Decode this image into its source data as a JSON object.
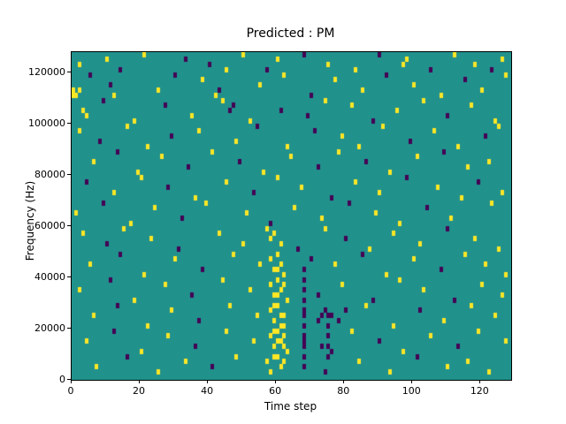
{
  "chart_data": {
    "type": "heatmap",
    "title": "Predicted : PM",
    "xlabel": "Time step",
    "ylabel": "Frequency (Hz)",
    "xlim": [
      0,
      129
    ],
    "ylim": [
      0,
      128000
    ],
    "x_ticks": [
      0,
      20,
      40,
      60,
      80,
      100,
      120
    ],
    "y_ticks": [
      0,
      20000,
      40000,
      60000,
      80000,
      100000,
      120000
    ],
    "bin_width_steps": 1,
    "bin_height_hz": 2000,
    "colors": {
      "background": "#21918c",
      "high": "#fde725",
      "low": "#440154",
      "axis": "#000000",
      "page": "#ffffff"
    },
    "legend": "none",
    "grid": false,
    "cells_note": "each cell = [time_step, frequency_hz_lower_edge, value] value 1=yellow(high) 0=purple(low)",
    "cells": [
      [
        2,
        122000,
        1
      ],
      [
        10,
        124000,
        1
      ],
      [
        14,
        120000,
        0
      ],
      [
        21,
        126000,
        1
      ],
      [
        33,
        124000,
        0
      ],
      [
        40,
        122000,
        0
      ],
      [
        45,
        120000,
        1
      ],
      [
        50,
        126000,
        1
      ],
      [
        57,
        120000,
        0
      ],
      [
        60,
        124000,
        1
      ],
      [
        68,
        126000,
        0
      ],
      [
        75,
        122000,
        1
      ],
      [
        83,
        120000,
        1
      ],
      [
        90,
        126000,
        0
      ],
      [
        97,
        122000,
        1
      ],
      [
        98,
        124000,
        1
      ],
      [
        105,
        120000,
        0
      ],
      [
        112,
        126000,
        1
      ],
      [
        118,
        122000,
        1
      ],
      [
        123,
        120000,
        0
      ],
      [
        126,
        124000,
        1
      ],
      [
        1,
        110000,
        1
      ],
      [
        2,
        112000,
        1
      ],
      [
        5,
        118000,
        0
      ],
      [
        11,
        114000,
        0
      ],
      [
        12,
        110000,
        1
      ],
      [
        25,
        112000,
        1
      ],
      [
        30,
        118000,
        0
      ],
      [
        38,
        116000,
        1
      ],
      [
        42,
        110000,
        1
      ],
      [
        43,
        112000,
        0
      ],
      [
        55,
        114000,
        1
      ],
      [
        62,
        118000,
        1
      ],
      [
        70,
        110000,
        0
      ],
      [
        77,
        116000,
        1
      ],
      [
        85,
        112000,
        1
      ],
      [
        92,
        118000,
        0
      ],
      [
        100,
        114000,
        1
      ],
      [
        108,
        110000,
        1
      ],
      [
        115,
        116000,
        0
      ],
      [
        120,
        112000,
        1
      ],
      [
        127,
        118000,
        1
      ],
      [
        0,
        110000,
        1
      ],
      [
        0,
        112000,
        1
      ],
      [
        3,
        104000,
        1
      ],
      [
        4,
        102000,
        1
      ],
      [
        9,
        108000,
        0
      ],
      [
        18,
        100000,
        1
      ],
      [
        27,
        106000,
        0
      ],
      [
        35,
        102000,
        1
      ],
      [
        44,
        108000,
        1
      ],
      [
        46,
        104000,
        0
      ],
      [
        47,
        106000,
        0
      ],
      [
        52,
        100000,
        1
      ],
      [
        61,
        104000,
        0
      ],
      [
        69,
        102000,
        0
      ],
      [
        74,
        108000,
        1
      ],
      [
        82,
        106000,
        1
      ],
      [
        88,
        100000,
        0
      ],
      [
        95,
        104000,
        1
      ],
      [
        103,
        108000,
        1
      ],
      [
        110,
        102000,
        0
      ],
      [
        117,
        106000,
        1
      ],
      [
        124,
        100000,
        1
      ],
      [
        2,
        96000,
        1
      ],
      [
        8,
        92000,
        0
      ],
      [
        16,
        98000,
        1
      ],
      [
        22,
        90000,
        1
      ],
      [
        29,
        94000,
        0
      ],
      [
        37,
        96000,
        1
      ],
      [
        48,
        92000,
        1
      ],
      [
        54,
        98000,
        0
      ],
      [
        63,
        90000,
        1
      ],
      [
        71,
        96000,
        0
      ],
      [
        79,
        94000,
        1
      ],
      [
        84,
        90000,
        1
      ],
      [
        91,
        98000,
        1
      ],
      [
        99,
        92000,
        0
      ],
      [
        106,
        96000,
        1
      ],
      [
        113,
        90000,
        1
      ],
      [
        121,
        94000,
        0
      ],
      [
        125,
        98000,
        1
      ],
      [
        6,
        84000,
        1
      ],
      [
        13,
        88000,
        0
      ],
      [
        19,
        80000,
        1
      ],
      [
        26,
        86000,
        1
      ],
      [
        34,
        82000,
        0
      ],
      [
        41,
        88000,
        1
      ],
      [
        49,
        84000,
        0
      ],
      [
        56,
        80000,
        1
      ],
      [
        64,
        86000,
        1
      ],
      [
        72,
        82000,
        0
      ],
      [
        78,
        88000,
        1
      ],
      [
        86,
        84000,
        0
      ],
      [
        93,
        80000,
        1
      ],
      [
        101,
        86000,
        1
      ],
      [
        109,
        88000,
        0
      ],
      [
        116,
        82000,
        1
      ],
      [
        122,
        84000,
        1
      ],
      [
        4,
        76000,
        0
      ],
      [
        12,
        72000,
        1
      ],
      [
        20,
        78000,
        1
      ],
      [
        28,
        74000,
        0
      ],
      [
        36,
        70000,
        1
      ],
      [
        45,
        76000,
        1
      ],
      [
        53,
        72000,
        0
      ],
      [
        60,
        78000,
        1
      ],
      [
        67,
        74000,
        1
      ],
      [
        76,
        70000,
        0
      ],
      [
        83,
        76000,
        1
      ],
      [
        90,
        72000,
        1
      ],
      [
        98,
        78000,
        0
      ],
      [
        107,
        74000,
        1
      ],
      [
        114,
        70000,
        1
      ],
      [
        119,
        76000,
        0
      ],
      [
        126,
        72000,
        1
      ],
      [
        1,
        64000,
        1
      ],
      [
        9,
        68000,
        0
      ],
      [
        17,
        60000,
        1
      ],
      [
        24,
        66000,
        1
      ],
      [
        32,
        62000,
        0
      ],
      [
        39,
        68000,
        1
      ],
      [
        51,
        64000,
        1
      ],
      [
        58,
        60000,
        0
      ],
      [
        65,
        66000,
        1
      ],
      [
        73,
        62000,
        1
      ],
      [
        81,
        68000,
        0
      ],
      [
        89,
        64000,
        1
      ],
      [
        96,
        60000,
        1
      ],
      [
        104,
        66000,
        0
      ],
      [
        111,
        62000,
        1
      ],
      [
        123,
        68000,
        1
      ],
      [
        3,
        56000,
        1
      ],
      [
        10,
        52000,
        0
      ],
      [
        15,
        58000,
        1
      ],
      [
        23,
        54000,
        1
      ],
      [
        31,
        50000,
        0
      ],
      [
        43,
        56000,
        1
      ],
      [
        50,
        52000,
        1
      ],
      [
        57,
        58000,
        1
      ],
      [
        58,
        54000,
        1
      ],
      [
        59,
        56000,
        1
      ],
      [
        61,
        52000,
        1
      ],
      [
        66,
        50000,
        0
      ],
      [
        74,
        58000,
        1
      ],
      [
        80,
        54000,
        0
      ],
      [
        87,
        50000,
        1
      ],
      [
        94,
        56000,
        1
      ],
      [
        102,
        52000,
        1
      ],
      [
        110,
        58000,
        0
      ],
      [
        118,
        54000,
        1
      ],
      [
        125,
        50000,
        1
      ],
      [
        5,
        44000,
        1
      ],
      [
        14,
        48000,
        0
      ],
      [
        21,
        40000,
        1
      ],
      [
        30,
        46000,
        1
      ],
      [
        38,
        42000,
        0
      ],
      [
        47,
        48000,
        1
      ],
      [
        55,
        44000,
        1
      ],
      [
        58,
        46000,
        1
      ],
      [
        59,
        42000,
        1
      ],
      [
        60,
        48000,
        1
      ],
      [
        61,
        44000,
        1
      ],
      [
        62,
        40000,
        1
      ],
      [
        68,
        42000,
        0
      ],
      [
        70,
        46000,
        0
      ],
      [
        77,
        44000,
        1
      ],
      [
        85,
        48000,
        0
      ],
      [
        92,
        40000,
        1
      ],
      [
        100,
        46000,
        1
      ],
      [
        108,
        42000,
        0
      ],
      [
        115,
        48000,
        1
      ],
      [
        121,
        44000,
        1
      ],
      [
        127,
        40000,
        1
      ],
      [
        2,
        34000,
        1
      ],
      [
        11,
        38000,
        0
      ],
      [
        18,
        30000,
        1
      ],
      [
        27,
        36000,
        1
      ],
      [
        35,
        32000,
        0
      ],
      [
        44,
        38000,
        1
      ],
      [
        52,
        34000,
        1
      ],
      [
        58,
        36000,
        1
      ],
      [
        59,
        32000,
        1
      ],
      [
        60,
        38000,
        1
      ],
      [
        61,
        34000,
        1
      ],
      [
        62,
        36000,
        1
      ],
      [
        63,
        30000,
        1
      ],
      [
        68,
        34000,
        0
      ],
      [
        68,
        38000,
        0
      ],
      [
        72,
        32000,
        0
      ],
      [
        79,
        36000,
        1
      ],
      [
        88,
        30000,
        0
      ],
      [
        96,
        38000,
        1
      ],
      [
        103,
        34000,
        1
      ],
      [
        112,
        30000,
        0
      ],
      [
        120,
        36000,
        1
      ],
      [
        126,
        32000,
        1
      ],
      [
        6,
        24000,
        1
      ],
      [
        13,
        28000,
        0
      ],
      [
        22,
        20000,
        1
      ],
      [
        29,
        26000,
        1
      ],
      [
        37,
        22000,
        0
      ],
      [
        46,
        28000,
        1
      ],
      [
        54,
        24000,
        1
      ],
      [
        58,
        26000,
        1
      ],
      [
        59,
        22000,
        1
      ],
      [
        60,
        28000,
        1
      ],
      [
        61,
        24000,
        1
      ],
      [
        62,
        20000,
        1
      ],
      [
        68,
        26000,
        0
      ],
      [
        72,
        22000,
        0
      ],
      [
        73,
        24000,
        0
      ],
      [
        74,
        26000,
        0
      ],
      [
        75,
        20000,
        0
      ],
      [
        76,
        24000,
        0
      ],
      [
        78,
        22000,
        0
      ],
      [
        80,
        26000,
        0
      ],
      [
        86,
        28000,
        1
      ],
      [
        94,
        20000,
        1
      ],
      [
        102,
        26000,
        0
      ],
      [
        109,
        22000,
        1
      ],
      [
        117,
        28000,
        1
      ],
      [
        124,
        24000,
        1
      ],
      [
        4,
        14000,
        1
      ],
      [
        12,
        18000,
        0
      ],
      [
        20,
        10000,
        1
      ],
      [
        28,
        16000,
        1
      ],
      [
        36,
        12000,
        0
      ],
      [
        45,
        18000,
        1
      ],
      [
        53,
        14000,
        1
      ],
      [
        58,
        16000,
        1
      ],
      [
        59,
        12000,
        1
      ],
      [
        60,
        18000,
        1
      ],
      [
        61,
        14000,
        1
      ],
      [
        62,
        16000,
        1
      ],
      [
        63,
        10000,
        1
      ],
      [
        68,
        14000,
        0
      ],
      [
        73,
        12000,
        0
      ],
      [
        75,
        16000,
        0
      ],
      [
        76,
        10000,
        0
      ],
      [
        82,
        18000,
        1
      ],
      [
        90,
        14000,
        0
      ],
      [
        97,
        10000,
        1
      ],
      [
        105,
        16000,
        1
      ],
      [
        113,
        12000,
        0
      ],
      [
        119,
        18000,
        1
      ],
      [
        127,
        14000,
        1
      ],
      [
        7,
        4000,
        1
      ],
      [
        16,
        8000,
        0
      ],
      [
        25,
        2000,
        1
      ],
      [
        33,
        6000,
        1
      ],
      [
        41,
        4000,
        0
      ],
      [
        48,
        8000,
        1
      ],
      [
        57,
        6000,
        1
      ],
      [
        58,
        2000,
        1
      ],
      [
        60,
        8000,
        1
      ],
      [
        61,
        4000,
        1
      ],
      [
        62,
        6000,
        1
      ],
      [
        68,
        4000,
        0
      ],
      [
        74,
        2000,
        0
      ],
      [
        75,
        8000,
        0
      ],
      [
        84,
        6000,
        1
      ],
      [
        93,
        2000,
        1
      ],
      [
        101,
        8000,
        0
      ],
      [
        110,
        4000,
        1
      ],
      [
        116,
        6000,
        1
      ],
      [
        122,
        2000,
        1
      ],
      [
        68,
        8000,
        0
      ],
      [
        68,
        12000,
        0
      ],
      [
        68,
        16000,
        0
      ],
      [
        68,
        20000,
        0
      ],
      [
        68,
        24000,
        0
      ],
      [
        68,
        30000,
        0
      ],
      [
        75,
        12000,
        0
      ],
      [
        75,
        24000,
        0
      ],
      [
        59,
        18000,
        1
      ],
      [
        59,
        28000,
        1
      ],
      [
        60,
        32000,
        1
      ],
      [
        60,
        42000,
        1
      ],
      [
        61,
        20000,
        1
      ],
      [
        62,
        24000,
        1
      ],
      [
        62,
        12000,
        1
      ],
      [
        59,
        8000,
        1
      ],
      [
        60,
        14000,
        1
      ]
    ]
  }
}
